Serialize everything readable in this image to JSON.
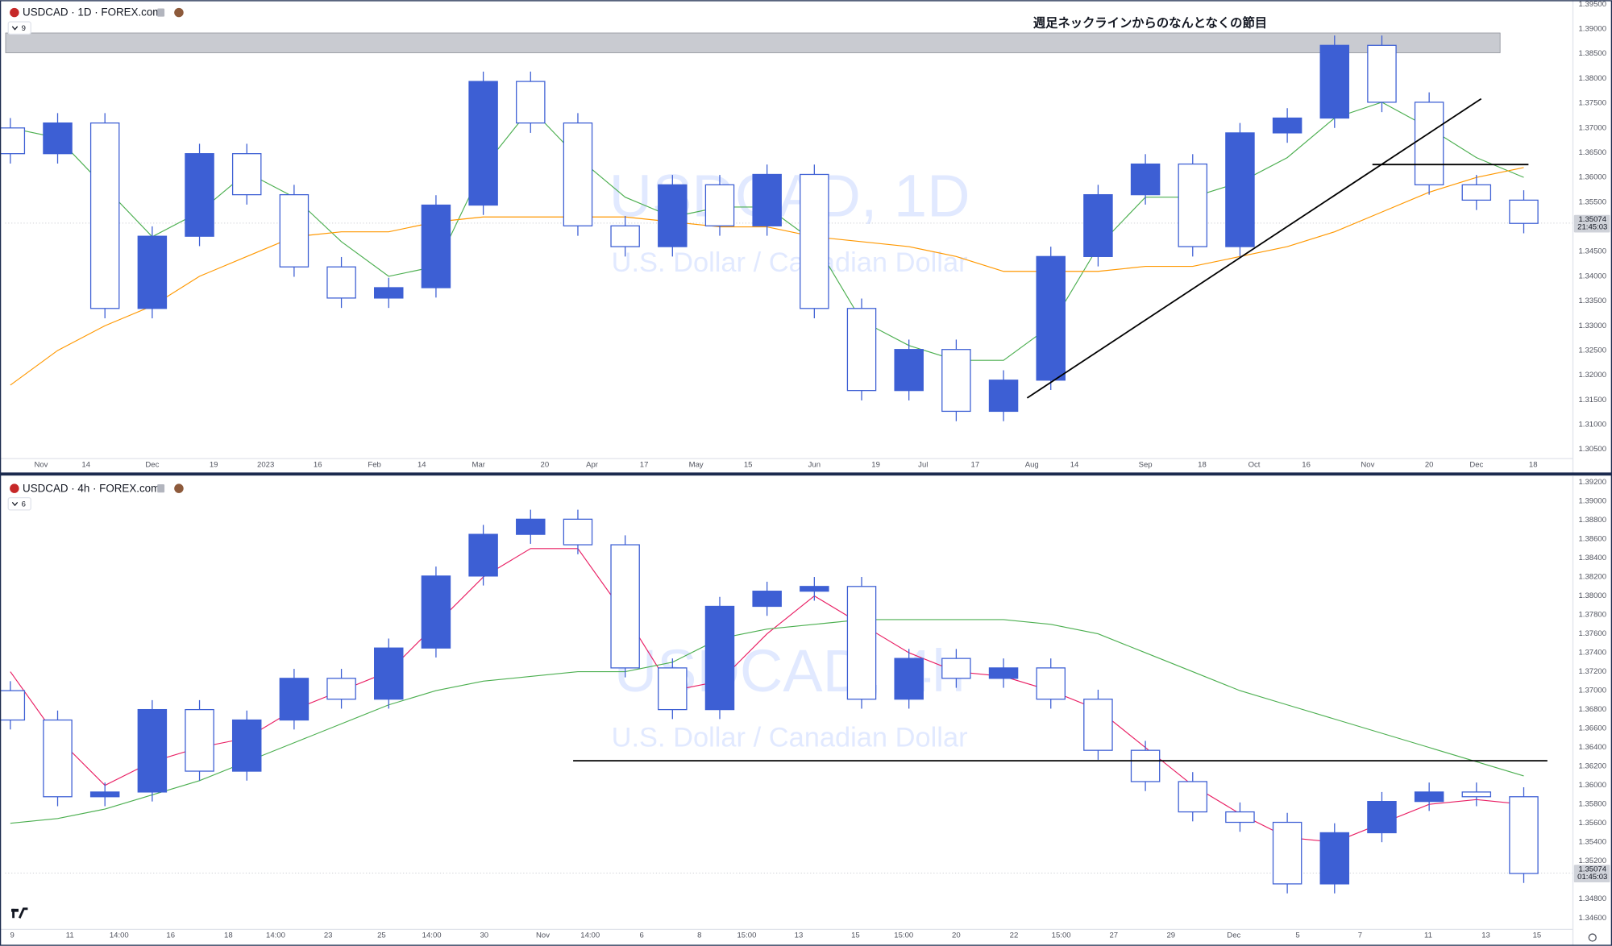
{
  "chart_data": [
    {
      "type": "candlestick",
      "title": "USDCAD · 1D · FOREX.com",
      "indicator_count": "9",
      "watermark": "USDCAD, 1D",
      "watermark_subtitle": "U.S. Dollar / Canadian Dollar",
      "annotation": "週足ネックラインからのなんとなくの節目",
      "last_price": 1.35074,
      "countdown": "21:45:03",
      "color": "#3d5fd4",
      "candles": {
        "open": [
          1.37,
          1.3648,
          1.371,
          1.3335,
          1.3481,
          1.3648,
          1.3565,
          1.3419,
          1.3356,
          1.3377,
          1.3544,
          1.3794,
          1.371,
          1.3502,
          1.346,
          1.3585,
          1.3502,
          1.3606,
          1.3335,
          1.3169,
          1.3252,
          1.3127,
          1.319,
          1.344,
          1.3565,
          1.3627,
          1.346,
          1.369,
          1.372,
          1.3867,
          1.3752,
          1.3585,
          1.3554
        ],
        "high": [
          1.372,
          1.373,
          1.373,
          1.3501,
          1.3668,
          1.3668,
          1.3585,
          1.3439,
          1.3397,
          1.3564,
          1.3814,
          1.3814,
          1.373,
          1.3522,
          1.3605,
          1.3605,
          1.3626,
          1.3626,
          1.3355,
          1.3272,
          1.3272,
          1.321,
          1.346,
          1.3585,
          1.3647,
          1.3647,
          1.371,
          1.374,
          1.3887,
          1.3887,
          1.3772,
          1.3605,
          1.3574
        ],
        "low": [
          1.3628,
          1.3628,
          1.3315,
          1.3315,
          1.3461,
          1.3545,
          1.3399,
          1.3336,
          1.3336,
          1.3357,
          1.3524,
          1.369,
          1.3482,
          1.344,
          1.344,
          1.3482,
          1.3482,
          1.3315,
          1.3149,
          1.3149,
          1.3107,
          1.3107,
          1.317,
          1.342,
          1.3545,
          1.344,
          1.344,
          1.367,
          1.37,
          1.3732,
          1.3565,
          1.3534,
          1.3487
        ],
        "close": [
          1.3648,
          1.371,
          1.3335,
          1.3481,
          1.3648,
          1.3565,
          1.3419,
          1.3356,
          1.3377,
          1.3544,
          1.3794,
          1.371,
          1.3502,
          1.346,
          1.3585,
          1.3502,
          1.3606,
          1.3335,
          1.3169,
          1.3252,
          1.3127,
          1.319,
          1.344,
          1.3565,
          1.3627,
          1.346,
          1.369,
          1.372,
          1.3867,
          1.3752,
          1.3585,
          1.3554,
          1.3507
        ]
      },
      "lines": [
        {
          "color": "#4caf50",
          "values": [
            1.37,
            1.368,
            1.358,
            1.348,
            1.353,
            1.361,
            1.356,
            1.347,
            1.34,
            1.342,
            1.362,
            1.374,
            1.364,
            1.356,
            1.352,
            1.354,
            1.354,
            1.347,
            1.331,
            1.326,
            1.323,
            1.323,
            1.33,
            1.346,
            1.356,
            1.356,
            1.359,
            1.364,
            1.372,
            1.3752,
            1.37,
            1.364,
            1.36
          ]
        },
        {
          "color": "#ff9800",
          "values": [
            1.318,
            1.325,
            1.33,
            1.334,
            1.34,
            1.344,
            1.348,
            1.349,
            1.349,
            1.351,
            1.352,
            1.352,
            1.352,
            1.352,
            1.351,
            1.35,
            1.35,
            1.348,
            1.347,
            1.346,
            1.344,
            1.341,
            1.341,
            1.341,
            1.342,
            1.342,
            1.344,
            1.346,
            1.349,
            1.353,
            1.357,
            1.36,
            1.362
          ]
        }
      ],
      "band": {
        "x": [
          -0.1,
          31.5
        ],
        "y": [
          1.3852,
          1.3892
        ]
      },
      "trendlines": [
        {
          "x": [
            21.5,
            31.1
          ],
          "y": [
            1.3154,
            1.3759
          ]
        },
        {
          "x": [
            28.8,
            32.1
          ],
          "y": [
            1.3626,
            1.3626
          ]
        }
      ],
      "xlim": [
        -0.11,
        33.04
      ],
      "ylim": [
        1.30334,
        1.39583
      ],
      "xticks": [
        {
          "value": 0.65,
          "label": "Nov"
        },
        {
          "value": 1.6,
          "label": "14"
        },
        {
          "value": 3.0,
          "label": "Dec"
        },
        {
          "value": 4.3,
          "label": "19"
        },
        {
          "value": 5.4,
          "label": "2023"
        },
        {
          "value": 6.5,
          "label": "16"
        },
        {
          "value": 7.7,
          "label": "Feb"
        },
        {
          "value": 8.7,
          "label": "14"
        },
        {
          "value": 9.9,
          "label": "Mar"
        },
        {
          "value": 11.3,
          "label": "20"
        },
        {
          "value": 12.3,
          "label": "Apr"
        },
        {
          "value": 13.4,
          "label": "17"
        },
        {
          "value": 14.5,
          "label": "May"
        },
        {
          "value": 15.6,
          "label": "15"
        },
        {
          "value": 17.0,
          "label": "Jun"
        },
        {
          "value": 18.3,
          "label": "19"
        },
        {
          "value": 19.3,
          "label": "Jul"
        },
        {
          "value": 20.4,
          "label": "17"
        },
        {
          "value": 21.6,
          "label": "Aug"
        },
        {
          "value": 22.5,
          "label": "14"
        },
        {
          "value": 24.0,
          "label": "Sep"
        },
        {
          "value": 25.2,
          "label": "18"
        },
        {
          "value": 26.3,
          "label": "Oct"
        },
        {
          "value": 27.4,
          "label": "16"
        },
        {
          "value": 28.7,
          "label": "Nov"
        },
        {
          "value": 30.0,
          "label": "20"
        },
        {
          "value": 31.0,
          "label": "Dec"
        },
        {
          "value": 32.2,
          "label": "18"
        }
      ],
      "yticks": [
        {
          "value": 1.305,
          "label": "1.30500"
        },
        {
          "value": 1.31,
          "label": "1.31000"
        },
        {
          "value": 1.315,
          "label": "1.31500"
        },
        {
          "value": 1.32,
          "label": "1.32000"
        },
        {
          "value": 1.325,
          "label": "1.32500"
        },
        {
          "value": 1.33,
          "label": "1.33000"
        },
        {
          "value": 1.335,
          "label": "1.33500"
        },
        {
          "value": 1.34,
          "label": "1.34000"
        },
        {
          "value": 1.345,
          "label": "1.34500"
        },
        {
          "value": 1.35,
          "label": "1.35000"
        },
        {
          "value": 1.355,
          "label": "1.35500"
        },
        {
          "value": 1.36,
          "label": "1.36000"
        },
        {
          "value": 1.365,
          "label": "1.36500"
        },
        {
          "value": 1.37,
          "label": "1.37000"
        },
        {
          "value": 1.375,
          "label": "1.37500"
        },
        {
          "value": 1.38,
          "label": "1.38000"
        },
        {
          "value": 1.385,
          "label": "1.38500"
        },
        {
          "value": 1.39,
          "label": "1.39000"
        },
        {
          "value": 1.395,
          "label": "1.39500"
        }
      ],
      "grid": false
    },
    {
      "type": "candlestick",
      "title": "USDCAD · 4h · FOREX.com",
      "indicator_count": "6",
      "watermark": "USDCAD, 4h",
      "watermark_subtitle": "U.S. Dollar / Canadian Dollar",
      "last_price": 1.35074,
      "countdown": "01:45:03",
      "color": "#3d5fd4",
      "candles": {
        "open": [
          1.37,
          1.3669,
          1.3588,
          1.3593,
          1.368,
          1.3615,
          1.3669,
          1.3713,
          1.3691,
          1.3745,
          1.3821,
          1.3865,
          1.3881,
          1.3854,
          1.3724,
          1.368,
          1.3789,
          1.3805,
          1.381,
          1.3691,
          1.3734,
          1.3713,
          1.3724,
          1.3691,
          1.3637,
          1.3604,
          1.3572,
          1.3561,
          1.3496,
          1.355,
          1.3583,
          1.3593,
          1.3588
        ],
        "high": [
          1.371,
          1.3679,
          1.3603,
          1.369,
          1.369,
          1.3679,
          1.3723,
          1.3723,
          1.3755,
          1.3831,
          1.3875,
          1.3891,
          1.3891,
          1.3864,
          1.3734,
          1.3799,
          1.3815,
          1.382,
          1.382,
          1.3744,
          1.3744,
          1.3734,
          1.3734,
          1.3701,
          1.3647,
          1.3614,
          1.3582,
          1.3571,
          1.356,
          1.3593,
          1.3603,
          1.3603,
          1.3598
        ],
        "low": [
          1.3659,
          1.3578,
          1.3578,
          1.3583,
          1.3605,
          1.3605,
          1.3659,
          1.3681,
          1.3681,
          1.3735,
          1.3811,
          1.3855,
          1.3844,
          1.3714,
          1.367,
          1.367,
          1.3779,
          1.3795,
          1.3681,
          1.3681,
          1.3703,
          1.3703,
          1.3681,
          1.3627,
          1.3594,
          1.3562,
          1.3551,
          1.3486,
          1.3486,
          1.354,
          1.3573,
          1.3578,
          1.3497
        ],
        "close": [
          1.3669,
          1.3588,
          1.3593,
          1.368,
          1.3615,
          1.3669,
          1.3713,
          1.3691,
          1.3745,
          1.3821,
          1.3865,
          1.3881,
          1.3854,
          1.3724,
          1.368,
          1.3789,
          1.3805,
          1.381,
          1.3691,
          1.3734,
          1.3713,
          1.3724,
          1.3691,
          1.3637,
          1.3604,
          1.3572,
          1.3561,
          1.3496,
          1.355,
          1.3583,
          1.3593,
          1.3588,
          1.3507
        ]
      },
      "lines": [
        {
          "color": "#e91e63",
          "values": [
            1.372,
            1.365,
            1.36,
            1.3625,
            1.364,
            1.365,
            1.368,
            1.37,
            1.372,
            1.377,
            1.382,
            1.385,
            1.385,
            1.378,
            1.37,
            1.371,
            1.376,
            1.38,
            1.377,
            1.374,
            1.372,
            1.3715,
            1.37,
            1.368,
            1.364,
            1.36,
            1.357,
            1.3545,
            1.354,
            1.356,
            1.358,
            1.3585,
            1.358
          ]
        },
        {
          "color": "#4caf50",
          "values": [
            1.356,
            1.3565,
            1.3575,
            1.359,
            1.3605,
            1.3625,
            1.3645,
            1.3665,
            1.3685,
            1.37,
            1.371,
            1.3715,
            1.372,
            1.372,
            1.373,
            1.3755,
            1.3765,
            1.377,
            1.3775,
            1.3775,
            1.3775,
            1.3775,
            1.377,
            1.376,
            1.374,
            1.372,
            1.37,
            1.3685,
            1.367,
            1.3655,
            1.364,
            1.3625,
            1.361
          ]
        }
      ],
      "trendlines": [
        {
          "x": [
            11.9,
            32.5
          ],
          "y": [
            1.3626,
            1.3626
          ]
        }
      ],
      "xlim": [
        -0.11,
        33.04
      ],
      "ylim": [
        1.34491,
        1.39276
      ],
      "xticks": [
        {
          "value": 0.04,
          "label": "9"
        },
        {
          "value": 1.26,
          "label": "11"
        },
        {
          "value": 2.3,
          "label": "14:00"
        },
        {
          "value": 3.39,
          "label": "16"
        },
        {
          "value": 4.61,
          "label": "18"
        },
        {
          "value": 5.61,
          "label": "14:00"
        },
        {
          "value": 6.72,
          "label": "23"
        },
        {
          "value": 7.85,
          "label": "25"
        },
        {
          "value": 8.91,
          "label": "14:00"
        },
        {
          "value": 10.02,
          "label": "30"
        },
        {
          "value": 11.26,
          "label": "Nov"
        },
        {
          "value": 12.26,
          "label": "14:00"
        },
        {
          "value": 13.35,
          "label": "6"
        },
        {
          "value": 14.57,
          "label": "8"
        },
        {
          "value": 15.57,
          "label": "15:00"
        },
        {
          "value": 16.67,
          "label": "13"
        },
        {
          "value": 17.87,
          "label": "15"
        },
        {
          "value": 18.89,
          "label": "15:00"
        },
        {
          "value": 20.0,
          "label": "20"
        },
        {
          "value": 21.22,
          "label": "22"
        },
        {
          "value": 22.22,
          "label": "15:00"
        },
        {
          "value": 23.33,
          "label": "27"
        },
        {
          "value": 24.54,
          "label": "29"
        },
        {
          "value": 25.87,
          "label": "Dec"
        },
        {
          "value": 27.22,
          "label": "5"
        },
        {
          "value": 28.54,
          "label": "7"
        },
        {
          "value": 29.98,
          "label": "11"
        },
        {
          "value": 31.2,
          "label": "13"
        },
        {
          "value": 32.28,
          "label": "15"
        }
      ],
      "yticks": [
        {
          "value": 1.346,
          "label": "1.34600"
        },
        {
          "value": 1.348,
          "label": "1.34800"
        },
        {
          "value": 1.35,
          "label": "1.35000"
        },
        {
          "value": 1.352,
          "label": "1.35200"
        },
        {
          "value": 1.354,
          "label": "1.35400"
        },
        {
          "value": 1.356,
          "label": "1.35600"
        },
        {
          "value": 1.358,
          "label": "1.35800"
        },
        {
          "value": 1.36,
          "label": "1.36000"
        },
        {
          "value": 1.362,
          "label": "1.36200"
        },
        {
          "value": 1.364,
          "label": "1.36400"
        },
        {
          "value": 1.366,
          "label": "1.36600"
        },
        {
          "value": 1.368,
          "label": "1.36800"
        },
        {
          "value": 1.37,
          "label": "1.37000"
        },
        {
          "value": 1.372,
          "label": "1.37200"
        },
        {
          "value": 1.374,
          "label": "1.37400"
        },
        {
          "value": 1.376,
          "label": "1.37600"
        },
        {
          "value": 1.378,
          "label": "1.37800"
        },
        {
          "value": 1.38,
          "label": "1.38000"
        },
        {
          "value": 1.382,
          "label": "1.38200"
        },
        {
          "value": 1.384,
          "label": "1.38400"
        },
        {
          "value": 1.386,
          "label": "1.38600"
        },
        {
          "value": 1.388,
          "label": "1.38800"
        },
        {
          "value": 1.39,
          "label": "1.39000"
        },
        {
          "value": 1.392,
          "label": "1.39200"
        }
      ],
      "grid": false
    }
  ]
}
